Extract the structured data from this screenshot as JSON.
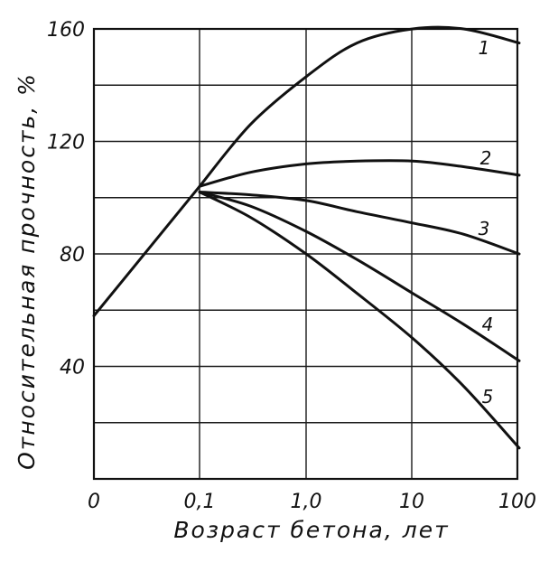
{
  "chart_data": {
    "type": "line",
    "xlabel": "Возраст бетона, лет",
    "ylabel": "Относительная прочность, %",
    "x_ticks": [
      "0",
      "0,1",
      "1,0",
      "10",
      "100"
    ],
    "y_ticks": [
      "40",
      "80",
      "120",
      "160"
    ],
    "ylim": [
      0,
      160
    ],
    "x_scale": "log (after 0,1)",
    "grid": true,
    "series": [
      {
        "name": "1",
        "x": [
          0,
          0.1,
          0.3,
          1,
          3,
          10,
          30,
          100
        ],
        "y": [
          58,
          104,
          126,
          143,
          155,
          160,
          160,
          155
        ]
      },
      {
        "name": "2",
        "x": [
          0.1,
          0.3,
          1,
          3,
          10,
          30,
          100
        ],
        "y": [
          104,
          109,
          112,
          113,
          113,
          111,
          108
        ]
      },
      {
        "name": "3",
        "x": [
          0.1,
          0.3,
          1,
          3,
          10,
          30,
          100
        ],
        "y": [
          102,
          101,
          99,
          95,
          91,
          87,
          80
        ]
      },
      {
        "name": "4",
        "x": [
          0.1,
          0.3,
          1,
          3,
          10,
          30,
          100
        ],
        "y": [
          102,
          97,
          88,
          78,
          66,
          55,
          42
        ]
      },
      {
        "name": "5",
        "x": [
          0.1,
          0.3,
          1,
          3,
          10,
          30,
          100
        ],
        "y": [
          102,
          93,
          80,
          66,
          50,
          33,
          11
        ]
      }
    ]
  }
}
